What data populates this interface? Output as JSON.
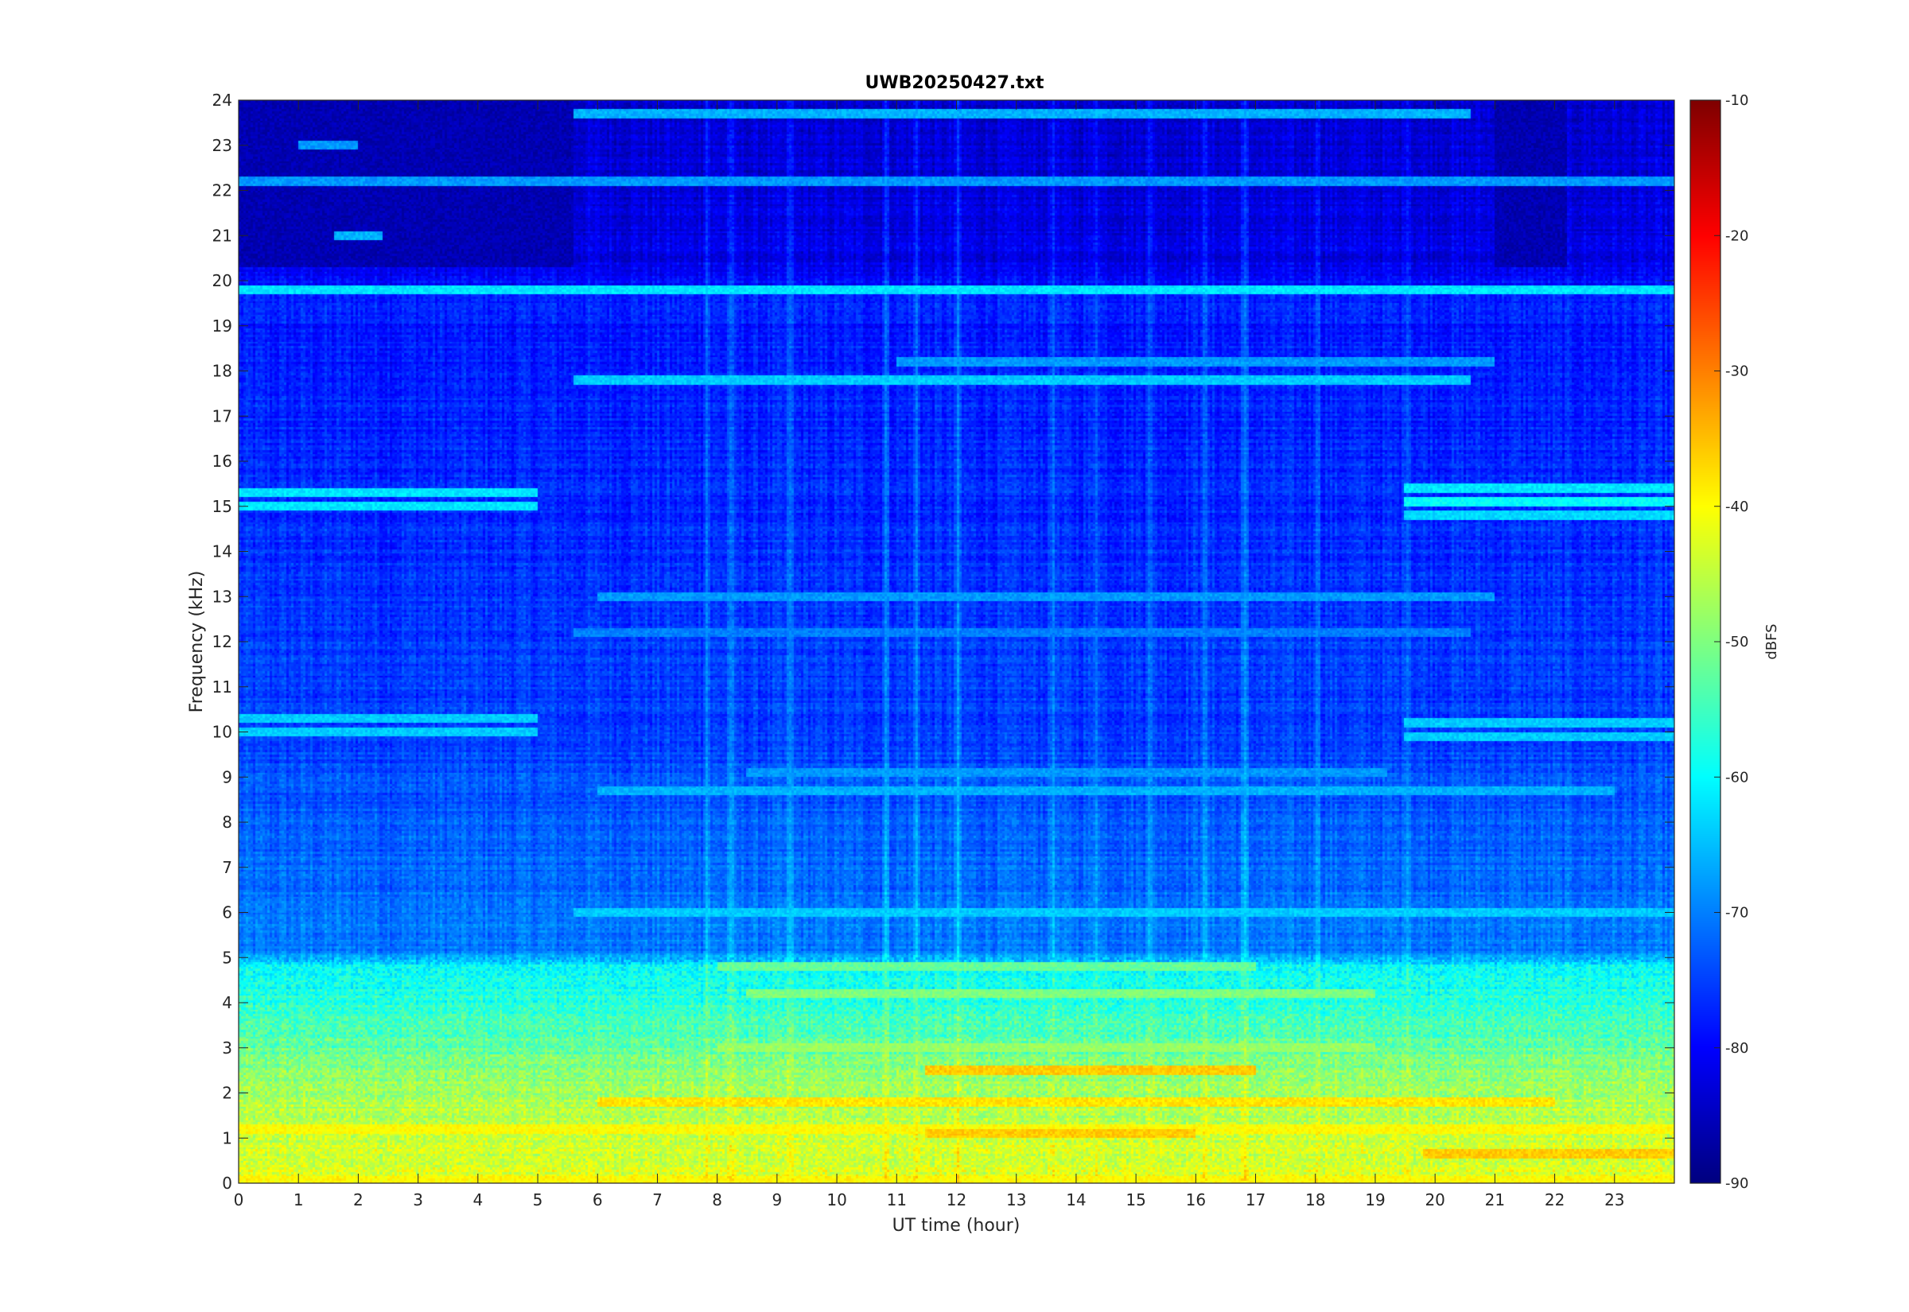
{
  "chart_data": {
    "type": "heatmap",
    "title": "UWB20250427.txt",
    "xlabel": "UT time (hour)",
    "ylabel": "Frequency (kHz)",
    "xlim": [
      0,
      24
    ],
    "ylim": [
      0,
      24
    ],
    "x_ticks": [
      0,
      1,
      2,
      3,
      4,
      5,
      6,
      7,
      8,
      9,
      10,
      11,
      12,
      13,
      14,
      15,
      16,
      17,
      18,
      19,
      20,
      21,
      22,
      23
    ],
    "y_ticks": [
      0,
      1,
      2,
      3,
      4,
      5,
      6,
      7,
      8,
      9,
      10,
      11,
      12,
      13,
      14,
      15,
      16,
      17,
      18,
      19,
      20,
      21,
      22,
      23,
      24
    ],
    "colorbar": {
      "label": "dBFS",
      "range": [
        -90,
        -10
      ],
      "ticks": [
        -10,
        -20,
        -30,
        -40,
        -50,
        -60,
        -70,
        -80,
        -90
      ],
      "colormap": "jet"
    },
    "features": {
      "background_by_frequency": [
        {
          "freq": 0.3,
          "level": -43
        },
        {
          "freq": 1.0,
          "level": -44
        },
        {
          "freq": 2.0,
          "level": -47
        },
        {
          "freq": 3.0,
          "level": -52
        },
        {
          "freq": 4.0,
          "level": -57
        },
        {
          "freq": 4.8,
          "level": -60
        },
        {
          "freq": 5.1,
          "level": -70
        },
        {
          "freq": 7.0,
          "level": -72
        },
        {
          "freq": 10.0,
          "level": -75
        },
        {
          "freq": 16.0,
          "level": -77
        },
        {
          "freq": 19.5,
          "level": -78
        },
        {
          "freq": 20.5,
          "level": -82
        },
        {
          "freq": 24.0,
          "level": -84
        }
      ],
      "horizontal_lines": [
        {
          "freq": 19.8,
          "level": -62,
          "start": 0,
          "end": 24
        },
        {
          "freq": 18.2,
          "level": -68,
          "start": 11,
          "end": 21
        },
        {
          "freq": 17.8,
          "level": -64,
          "start": 5.6,
          "end": 20.6
        },
        {
          "freq": 22.2,
          "level": -68,
          "start": 0,
          "end": 24
        },
        {
          "freq": 23.7,
          "level": -66,
          "start": 5.6,
          "end": 20.6
        },
        {
          "freq": 15.3,
          "level": -62,
          "start": 0,
          "end": 5
        },
        {
          "freq": 15.0,
          "level": -62,
          "start": 0,
          "end": 5
        },
        {
          "freq": 10.3,
          "level": -64,
          "start": 0,
          "end": 5
        },
        {
          "freq": 10.0,
          "level": -64,
          "start": 0,
          "end": 5
        },
        {
          "freq": 15.4,
          "level": -62,
          "start": 19.5,
          "end": 24
        },
        {
          "freq": 15.1,
          "level": -60,
          "start": 19.5,
          "end": 24
        },
        {
          "freq": 14.8,
          "level": -63,
          "start": 19.5,
          "end": 24
        },
        {
          "freq": 10.2,
          "level": -64,
          "start": 19.5,
          "end": 24
        },
        {
          "freq": 9.9,
          "level": -64,
          "start": 19.5,
          "end": 24
        },
        {
          "freq": 13.0,
          "level": -68,
          "start": 6,
          "end": 21
        },
        {
          "freq": 12.2,
          "level": -70,
          "start": 5.6,
          "end": 20.6
        },
        {
          "freq": 9.1,
          "level": -68,
          "start": 8.5,
          "end": 19.2
        },
        {
          "freq": 8.7,
          "level": -66,
          "start": 6,
          "end": 23
        },
        {
          "freq": 6.0,
          "level": -64,
          "start": 5.6,
          "end": 24
        },
        {
          "freq": 4.8,
          "level": -52,
          "start": 8,
          "end": 17
        },
        {
          "freq": 4.2,
          "level": -50,
          "start": 8.5,
          "end": 19
        },
        {
          "freq": 3.0,
          "level": -48,
          "start": 8,
          "end": 19
        },
        {
          "freq": 2.5,
          "level": -36,
          "start": 11.5,
          "end": 17
        },
        {
          "freq": 1.8,
          "level": -38,
          "start": 6,
          "end": 22
        },
        {
          "freq": 1.2,
          "level": -40,
          "start": 0,
          "end": 24
        },
        {
          "freq": 1.1,
          "level": -36,
          "start": 11.5,
          "end": 16
        },
        {
          "freq": 0.65,
          "level": -36,
          "start": 19.8,
          "end": 24
        },
        {
          "freq": 0.05,
          "level": -40,
          "start": 0,
          "end": 24
        },
        {
          "freq": 21.0,
          "level": -66,
          "start": 1.6,
          "end": 2.4
        },
        {
          "freq": 23.0,
          "level": -68,
          "start": 1.0,
          "end": 2.0
        }
      ],
      "dark_region_top": {
        "start": 0,
        "end": 5.6,
        "freq_from": 20.3,
        "freq_to": 24,
        "level": -86
      },
      "dark_region_top_right": {
        "start": 21,
        "end": 22.2,
        "freq_from": 20.3,
        "freq_to": 24,
        "level": -86
      },
      "vertical_streaks": [
        7.8,
        8.2,
        9.2,
        10.8,
        11.3,
        12.0,
        13.6,
        14.3,
        15.2,
        16.1,
        16.8,
        18.0,
        19.5
      ]
    }
  }
}
